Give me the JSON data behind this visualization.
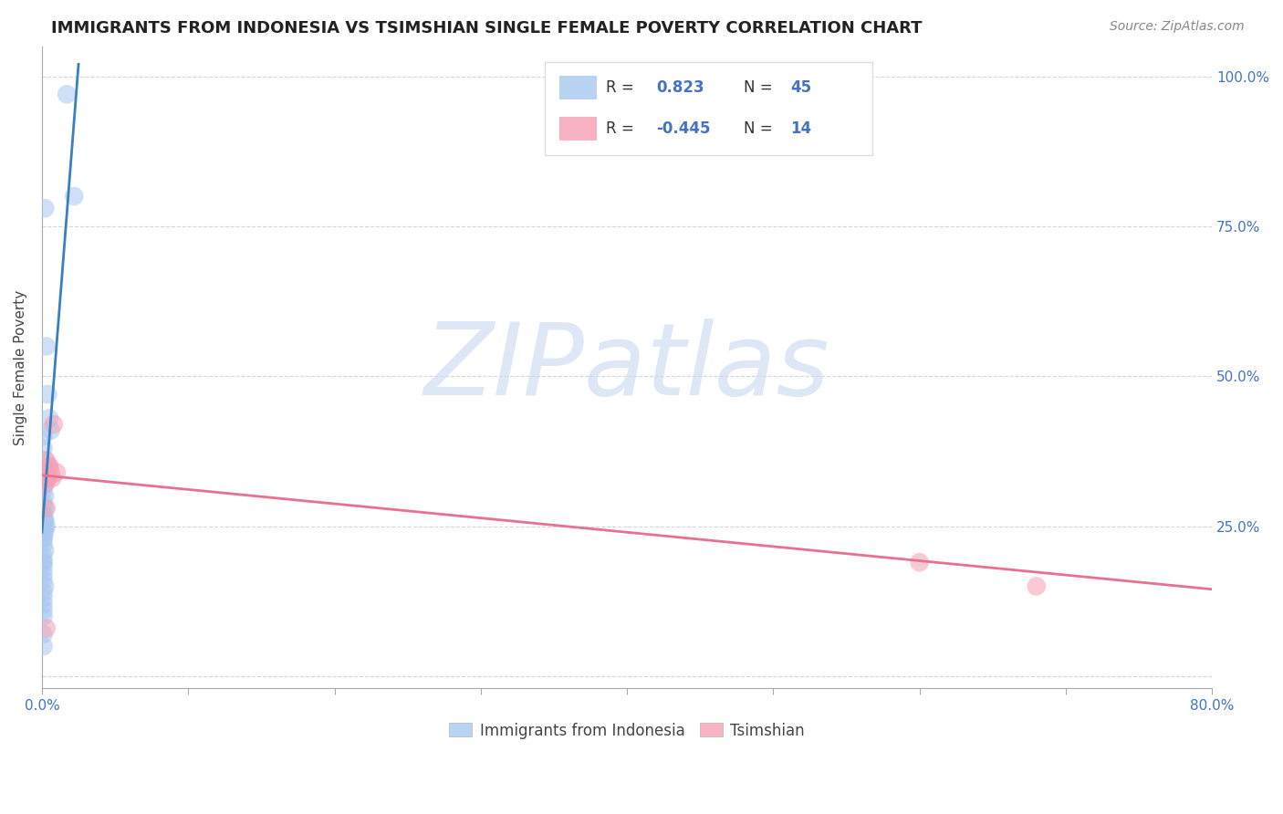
{
  "title": "IMMIGRANTS FROM INDONESIA VS TSIMSHIAN SINGLE FEMALE POVERTY CORRELATION CHART",
  "source": "Source: ZipAtlas.com",
  "ylabel": "Single Female Poverty",
  "xlim": [
    0.0,
    0.8
  ],
  "ylim": [
    -0.02,
    1.05
  ],
  "blue_color": "#a8c8f0",
  "pink_color": "#f5a0b5",
  "blue_line_color": "#3a7fc1",
  "pink_line_color": "#e87090",
  "legend_r_blue": "0.823",
  "legend_n_blue": "45",
  "legend_r_pink": "-0.445",
  "legend_n_pink": "14",
  "legend_text_color": "#333333",
  "legend_value_color": "#4472c4",
  "watermark": "ZIPatlas",
  "watermark_color": "#c8d8f0",
  "blue_scatter_x": [
    0.017,
    0.022,
    0.002,
    0.003,
    0.004,
    0.005,
    0.006,
    0.001,
    0.001,
    0.002,
    0.001,
    0.001,
    0.002,
    0.001,
    0.002,
    0.001,
    0.002,
    0.001,
    0.001,
    0.002,
    0.002,
    0.001,
    0.001,
    0.003,
    0.002,
    0.001,
    0.002,
    0.001,
    0.001,
    0.001,
    0.002,
    0.001,
    0.001,
    0.001,
    0.001,
    0.001,
    0.001,
    0.002,
    0.001,
    0.001,
    0.001,
    0.001,
    0.001,
    0.001,
    0.001
  ],
  "blue_scatter_y": [
    0.97,
    0.8,
    0.78,
    0.55,
    0.47,
    0.43,
    0.41,
    0.4,
    0.38,
    0.36,
    0.34,
    0.33,
    0.32,
    0.31,
    0.3,
    0.29,
    0.28,
    0.27,
    0.27,
    0.26,
    0.26,
    0.26,
    0.25,
    0.25,
    0.25,
    0.24,
    0.24,
    0.23,
    0.23,
    0.22,
    0.21,
    0.2,
    0.19,
    0.19,
    0.18,
    0.17,
    0.16,
    0.15,
    0.14,
    0.13,
    0.12,
    0.11,
    0.1,
    0.07,
    0.05
  ],
  "pink_scatter_x": [
    0.003,
    0.004,
    0.005,
    0.006,
    0.007,
    0.008,
    0.01,
    0.003,
    0.004,
    0.6,
    0.68,
    0.002,
    0.003,
    0.005
  ],
  "pink_scatter_y": [
    0.36,
    0.33,
    0.35,
    0.34,
    0.33,
    0.42,
    0.34,
    0.28,
    0.33,
    0.19,
    0.15,
    0.32,
    0.08,
    0.35
  ],
  "blue_trend_x": [
    0.0,
    0.025
  ],
  "blue_trend_y": [
    0.24,
    1.02
  ],
  "pink_trend_x": [
    0.0,
    0.8
  ],
  "pink_trend_y": [
    0.335,
    0.145
  ],
  "background_color": "#ffffff",
  "grid_color": "#cccccc",
  "ytick_positions": [
    0.0,
    0.25,
    0.5,
    0.75,
    1.0
  ],
  "ytick_labels_right": [
    "",
    "25.0%",
    "50.0%",
    "75.0%",
    "100.0%"
  ],
  "xtick_positions": [
    0.0,
    0.1,
    0.2,
    0.3,
    0.4,
    0.5,
    0.6,
    0.7,
    0.8
  ],
  "title_fontsize": 13,
  "source_fontsize": 10,
  "axis_label_fontsize": 11,
  "tick_fontsize": 11
}
